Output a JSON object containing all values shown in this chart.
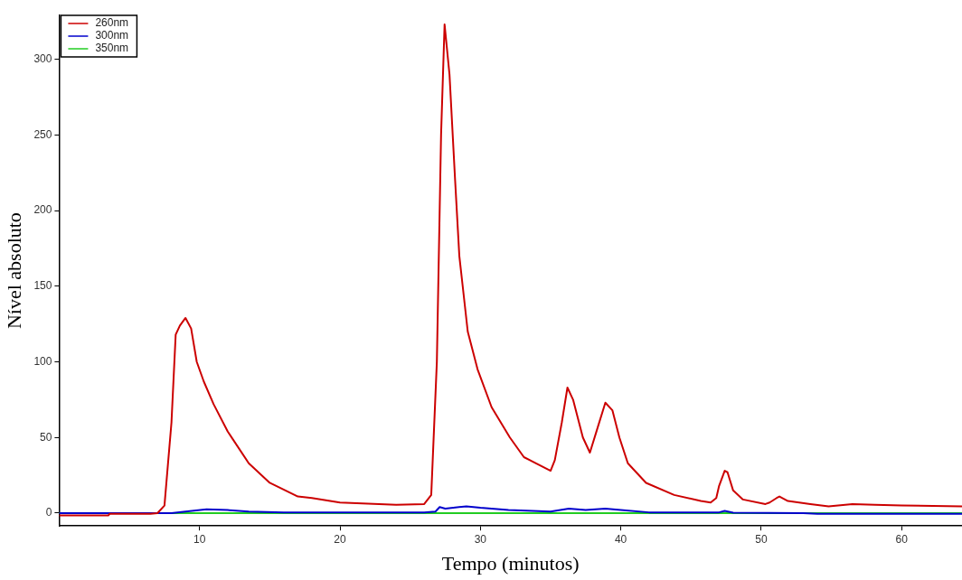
{
  "chart_data": {
    "type": "line",
    "xlabel": "Tempo (minutos)",
    "ylabel": "Nível absoluto",
    "xlim": [
      0,
      64.3
    ],
    "ylim": [
      -8.5,
      329
    ],
    "xticks": [
      10,
      20,
      30,
      40,
      50,
      60
    ],
    "yticks": [
      0,
      50,
      100,
      150,
      200,
      250,
      300
    ],
    "grid": false,
    "legend": "top left",
    "marker": "none",
    "line_style": "solid",
    "series": [
      {
        "name": "260nm",
        "color": "#cc0000",
        "x": [
          0,
          3.5,
          3.6,
          6.5,
          7,
          7.5,
          8.0,
          8.3,
          8.6,
          9.0,
          9.4,
          9.8,
          10.3,
          11,
          12,
          13.5,
          15,
          17,
          18,
          20,
          24,
          26,
          26.5,
          26.9,
          27.2,
          27.45,
          27.8,
          28.2,
          28.5,
          29.1,
          29.8,
          30.8,
          32.1,
          33.1,
          35.0,
          35.3,
          35.8,
          36.2,
          36.6,
          37.3,
          37.8,
          38.3,
          38.9,
          39.4,
          39.9,
          40.5,
          41.8,
          43.8,
          45.7,
          46.4,
          46.8,
          47.0,
          47.4,
          47.6,
          48.0,
          48.7,
          50.3,
          50.6,
          51.1,
          51.3,
          51.9,
          53.5,
          54.8,
          56.5,
          58.1,
          60,
          64.3
        ],
        "values": [
          -1.5,
          -1.5,
          -0.5,
          -0.5,
          0,
          5,
          60,
          118,
          124,
          129,
          122,
          100,
          87,
          72,
          54,
          33,
          20,
          11,
          10,
          7,
          5.5,
          6,
          12,
          100,
          250,
          323,
          290,
          220,
          170,
          120,
          95,
          70,
          50,
          37,
          28,
          35,
          60,
          83,
          75,
          50,
          40,
          55,
          73,
          68,
          50,
          33,
          20,
          12,
          8,
          7,
          10,
          18,
          28,
          27,
          15,
          9,
          6,
          7,
          10,
          11,
          8,
          6,
          4.5,
          6,
          5.5,
          5,
          4.5
        ]
      },
      {
        "name": "300nm",
        "color": "#0000cc",
        "x": [
          0,
          8,
          9,
          10.5,
          12,
          13.5,
          16,
          26,
          26.8,
          27.1,
          27.5,
          29,
          30,
          32,
          35,
          36.3,
          37.5,
          38.9,
          40,
          42,
          47,
          47.4,
          48,
          53,
          54,
          64.3
        ],
        "values": [
          0,
          0,
          1,
          2.5,
          2,
          1,
          0.5,
          0.5,
          1,
          4,
          3,
          4.5,
          3.5,
          2,
          1,
          3,
          2,
          3,
          2,
          0.5,
          0.5,
          1.5,
          0.3,
          0,
          -0.5,
          -0.5
        ]
      },
      {
        "name": "350nm",
        "color": "#22cc22",
        "x": [
          0,
          64.3
        ],
        "values": [
          0,
          0
        ]
      }
    ]
  }
}
